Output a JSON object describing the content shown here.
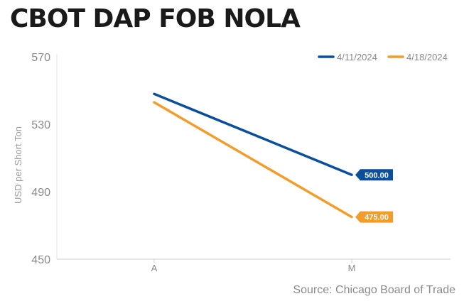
{
  "chart_data": {
    "type": "line",
    "title": "CBOT DAP FOB NOLA",
    "ylabel": "USD per Short Ton",
    "xlabel": "",
    "source": "Source: Chicago Board of Trade",
    "categories": [
      "A",
      "M"
    ],
    "ylim": [
      450,
      570
    ],
    "yticks": [
      570,
      530,
      490,
      450
    ],
    "grid": false,
    "legend_position": "top-right",
    "value_label_format": "0.00",
    "series": [
      {
        "name": "4/11/2024",
        "color": "#0b4f9c",
        "values": [
          548,
          500
        ],
        "end_label": "500.00"
      },
      {
        "name": "4/18/2024",
        "color": "#f29c2b",
        "values": [
          543,
          475
        ],
        "end_label": "475.00"
      }
    ]
  }
}
